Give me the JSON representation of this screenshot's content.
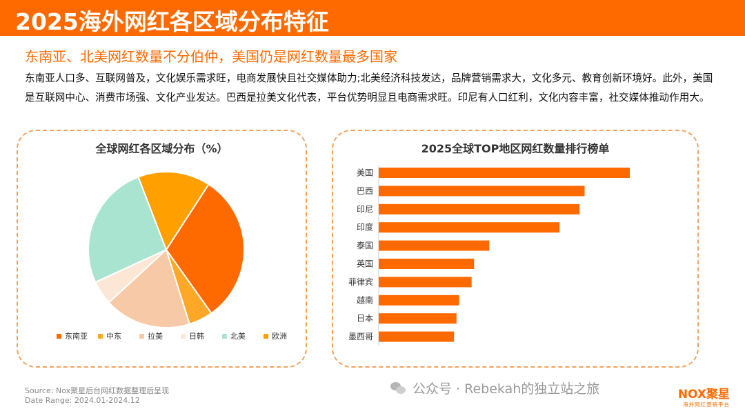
{
  "header": {
    "title": "2025海外网红各区域分布特征",
    "subtitle": "东南亚、北美网红数量不分伯仲，美国仍是网红数量最多国家",
    "description": "东南亚人口多、互联网普及，文化娱乐需求旺，电商发展快且社交媒体助力;北美经济科技发达，品牌营销需求大，文化多元、教育创新环境好。此外，美国是互联网中心、消费市场强、文化产业发达。巴西是拉美文化代表，平台优势明显且电商需求旺。印尼有人口红利，文化内容丰富，社交媒体推动作用大。"
  },
  "chart_data": [
    {
      "type": "pie",
      "title": "全球网红各区域分布（%）",
      "categories": [
        "东南亚",
        "中东",
        "拉美",
        "日韩",
        "北美",
        "欧洲"
      ],
      "values": [
        31,
        5,
        18,
        5,
        26,
        15
      ],
      "colors": [
        "#FF6A00",
        "#FFA726",
        "#F8C9A6",
        "#FCE7D6",
        "#A8E4D0",
        "#FF9F00"
      ],
      "start_angle_deg": 33,
      "legend_position": "bottom"
    },
    {
      "type": "bar",
      "orientation": "horizontal",
      "title": "2025全球TOP地区网红数量排行榜单",
      "categories": [
        "美国",
        "巴西",
        "印尼",
        "印度",
        "泰国",
        "英国",
        "菲律宾",
        "越南",
        "日本",
        "墨西哥"
      ],
      "values": [
        100,
        82,
        80,
        72,
        44,
        38,
        37,
        32,
        31,
        30
      ],
      "xlim": [
        0,
        100
      ],
      "bar_color": "#FF6A00",
      "axis_labels_shown": false
    }
  ],
  "footer": {
    "source": "Source:      Nox聚星后台网红数据整理后呈现",
    "date_range": "Date Range:  2024.01-2024.12",
    "wechat_text": "公众号 · Rebekah的独立站之旅",
    "brand_name": "NOX聚星",
    "brand_tagline": "海外网红营销平台"
  },
  "theme": {
    "accent": "#FF6A00",
    "panel_border": "#F5A15B"
  }
}
